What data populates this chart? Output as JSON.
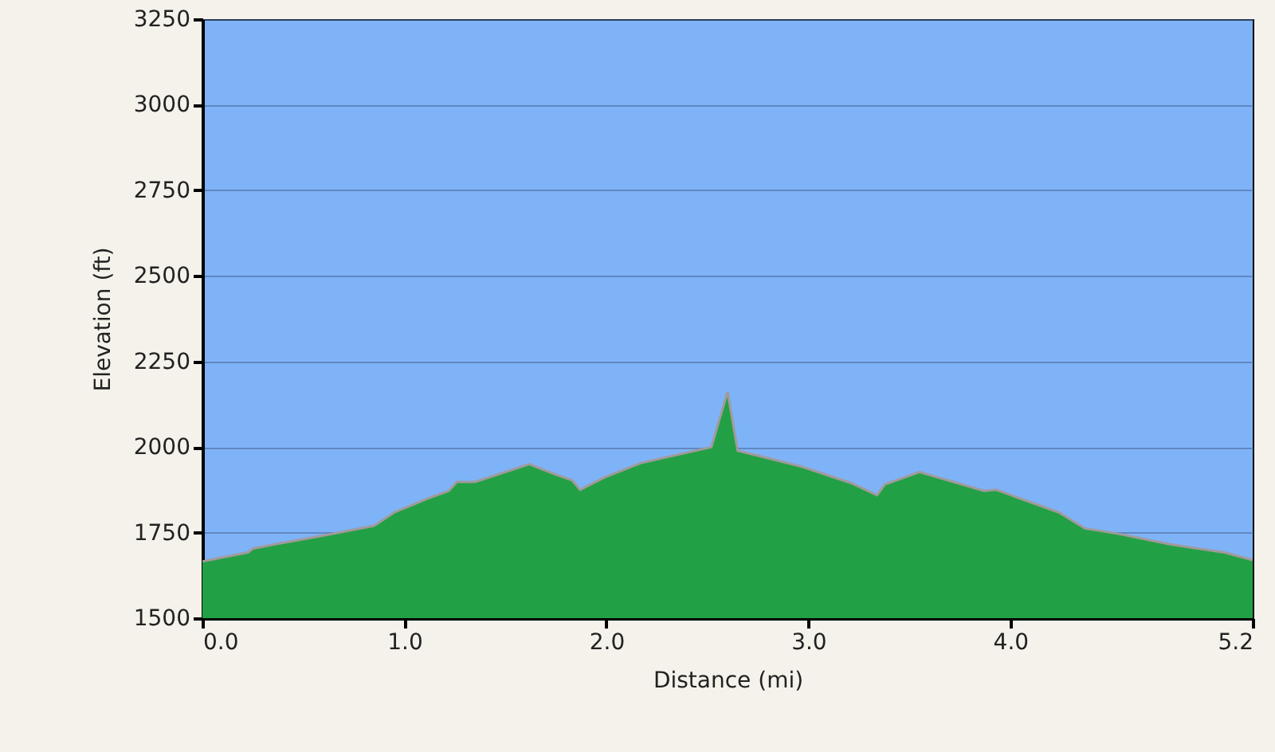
{
  "chart_data": {
    "type": "area",
    "xlabel": "Distance   (mi)",
    "ylabel": "Elevation (ft)",
    "xlim": [
      0,
      5.2
    ],
    "ylim": [
      1500,
      3250
    ],
    "xticks": [
      {
        "value": 0,
        "label": "0.0"
      },
      {
        "value": 1,
        "label": "1.0"
      },
      {
        "value": 2,
        "label": "2.0"
      },
      {
        "value": 3,
        "label": "3.0"
      },
      {
        "value": 4,
        "label": "4.0"
      },
      5.2
    ],
    "yticks": [
      1500,
      1750,
      2000,
      2250,
      2500,
      2750,
      3000,
      3250
    ],
    "grid": "y",
    "series": [
      {
        "color": "#22a045",
        "x": [
          0,
          0.225,
          0.25,
          0.36,
          0.58,
          0.85,
          0.95,
          1.11,
          1.22,
          1.26,
          1.35,
          1.62,
          1.64,
          1.75,
          1.83,
          1.87,
          1.99,
          2.17,
          2.44,
          2.52,
          2.6,
          2.65,
          2.81,
          2.97,
          3.21,
          3.34,
          3.38,
          3.55,
          3.87,
          3.93,
          4.24,
          4.37,
          4.53,
          4.79,
          5.06,
          5.2
        ],
        "values": [
          1666,
          1692,
          1703,
          1716,
          1739,
          1770,
          1809,
          1848,
          1872,
          1898,
          1898,
          1950,
          1945,
          1919,
          1903,
          1875,
          1911,
          1953,
          1989,
          2000,
          2161,
          1989,
          1966,
          1942,
          1895,
          1859,
          1891,
          1927,
          1872,
          1875,
          1809,
          1762,
          1747,
          1716,
          1692,
          1670
        ]
      }
    ]
  }
}
